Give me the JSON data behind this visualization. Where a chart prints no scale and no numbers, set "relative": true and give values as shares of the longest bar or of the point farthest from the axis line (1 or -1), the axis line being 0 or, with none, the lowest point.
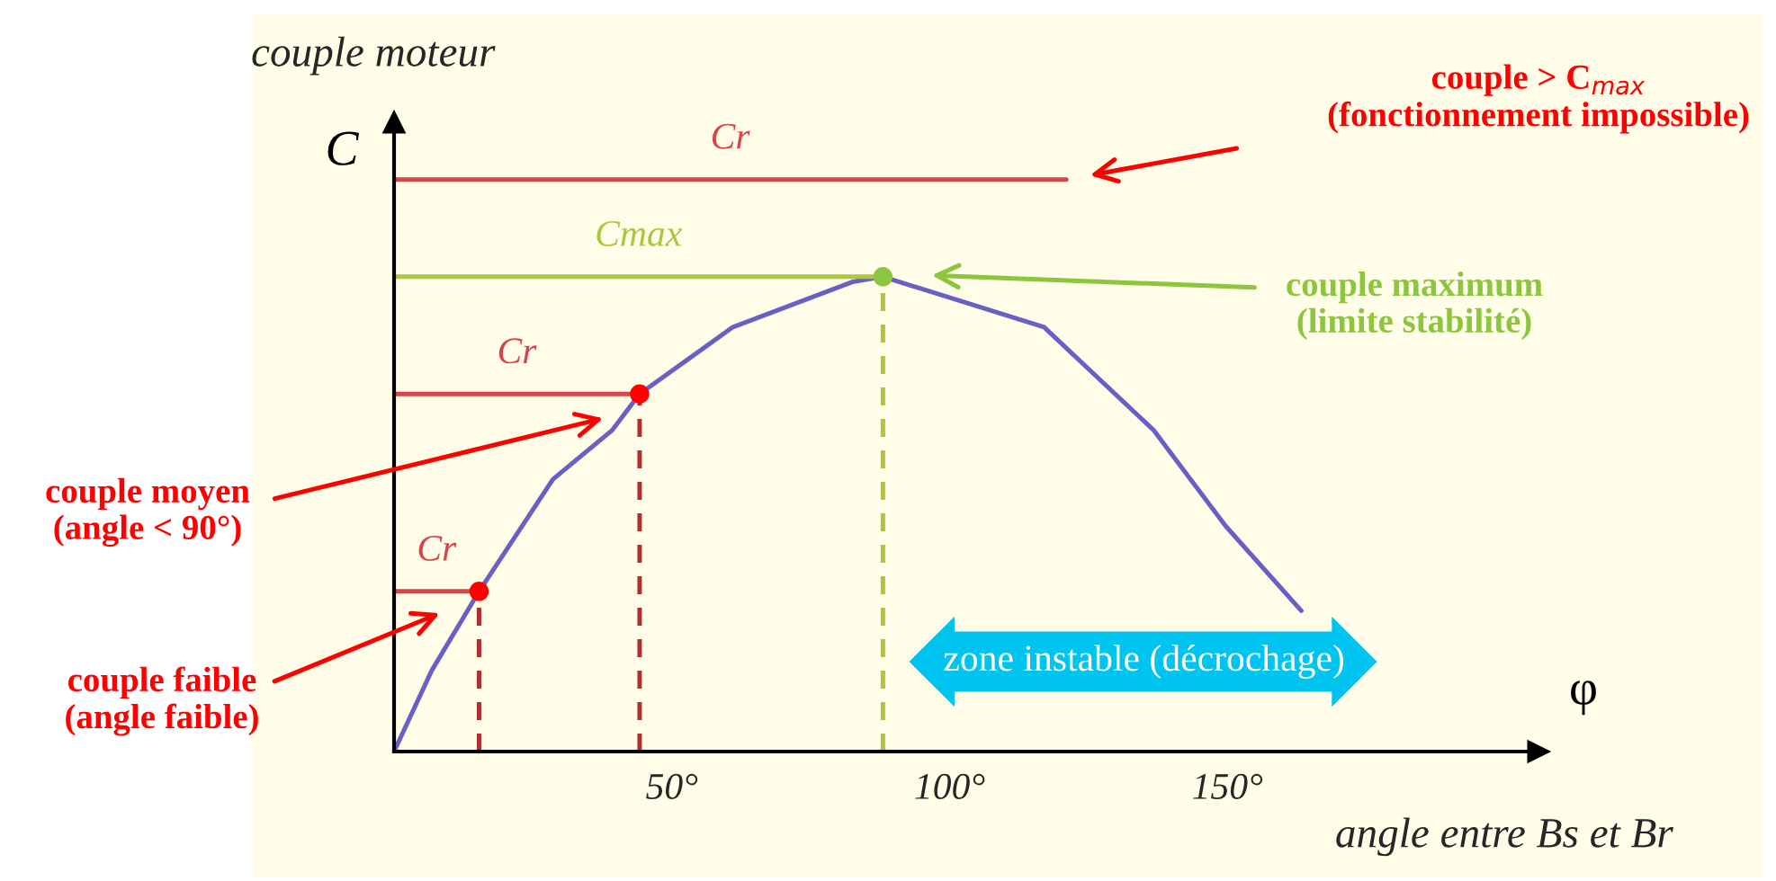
{
  "chart_data": {
    "type": "line",
    "relative": true,
    "xlabel": "angle entre Bs et Br",
    "ylabel": "couple moteur",
    "xlim": [
      0,
      206
    ],
    "xticks": [
      {
        "value": 50,
        "label": "50°"
      },
      {
        "value": 100,
        "label": "100°"
      },
      {
        "value": 150,
        "label": "150°"
      }
    ],
    "series": [
      {
        "color": "#6a5fc4",
        "x": [
          0,
          6.8,
          15.3,
          28.6,
          39.3,
          44.2,
          61,
          82.5,
          88,
          117,
          136.7,
          149.7,
          163.3
        ],
        "values": [
          0,
          0.142,
          0.28,
          0.476,
          0.562,
          0.625,
          0.742,
          0.821,
          0.83,
          0.742,
          0.562,
          0.394,
          0.246
        ]
      },
      {
        "name": "Cr",
        "color": "#d9444a",
        "x": [
          0,
          121
        ],
        "values": [
          1,
          1
        ]
      },
      {
        "name": "Cmax",
        "color": "#a9c83c",
        "x": [
          0,
          88
        ],
        "values": [
          0.83,
          0.83
        ]
      },
      {
        "name": "Cr",
        "color": "#d9444a",
        "x": [
          0,
          44.2
        ],
        "values": [
          0.625,
          0.625
        ]
      },
      {
        "name": "Cr",
        "color": "#d9444a",
        "x": [
          0,
          15.3
        ],
        "values": [
          0.28,
          0.28
        ]
      },
      {
        "color": "#b03030",
        "line_style": "dashed",
        "x": [
          15.3,
          15.3
        ],
        "values": [
          0,
          0.28
        ]
      },
      {
        "color": "#b03030",
        "line_style": "dashed",
        "x": [
          44.2,
          44.2
        ],
        "values": [
          0,
          0.625
        ]
      },
      {
        "color": "#a9c83c",
        "line_style": "dashed",
        "x": [
          88,
          88
        ],
        "values": [
          0,
          0.83
        ]
      },
      {
        "type": "scatter",
        "color": "#ff0000",
        "marker": "circle",
        "x": [
          15.3,
          44.2
        ],
        "values": [
          0.28,
          0.625
        ]
      },
      {
        "type": "scatter",
        "color": "#8cc63f",
        "marker": "circle",
        "x": [
          88
        ],
        "values": [
          0.83
        ]
      }
    ],
    "annotations": [
      "C",
      "φ",
      "couple > C$_{max}$\n(fonctionnement impossible)",
      "couple maximum\n(limite stabilité)",
      "couple moyen\n(angle < 90°)",
      "couple faible\n(angle faible)",
      "zone instable (décrochage)"
    ]
  }
}
